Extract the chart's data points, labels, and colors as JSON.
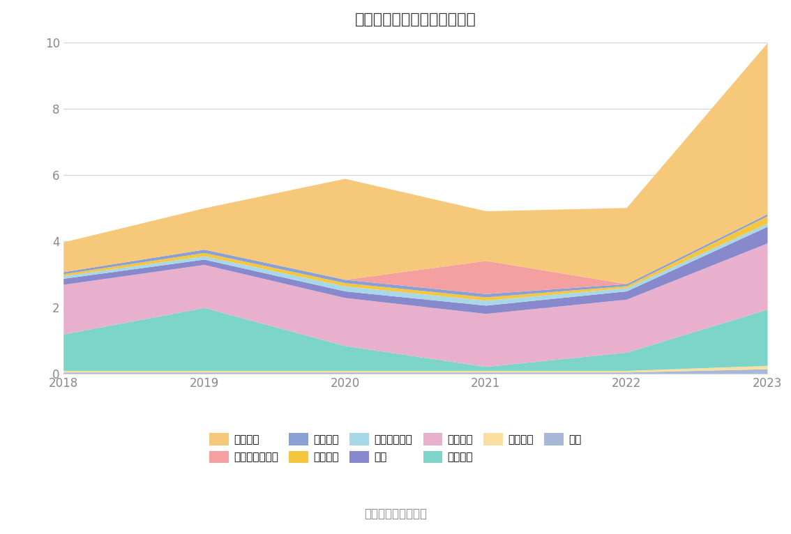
{
  "years": [
    2018,
    2019,
    2020,
    2021,
    2022,
    2023
  ],
  "series": {
    "其它": [
      0.05,
      0.05,
      0.05,
      0.05,
      0.05,
      0.15
    ],
    "无形资产": [
      0.05,
      0.05,
      0.05,
      0.05,
      0.05,
      0.1
    ],
    "在建工程": [
      1.1,
      1.9,
      0.75,
      0.12,
      0.55,
      1.7
    ],
    "固定资产": [
      1.5,
      1.3,
      1.45,
      1.6,
      1.6,
      2.0
    ],
    "存货": [
      0.18,
      0.16,
      0.2,
      0.25,
      0.25,
      0.5
    ],
    "应收款项融资": [
      0.08,
      0.1,
      0.15,
      0.15,
      0.1,
      0.1
    ],
    "应收账款": [
      0.06,
      0.1,
      0.1,
      0.1,
      0.06,
      0.22
    ],
    "应收票据": [
      0.06,
      0.1,
      0.1,
      0.1,
      0.06,
      0.06
    ],
    "交易性金融资产": [
      0.0,
      0.0,
      0.0,
      1.0,
      0.0,
      0.0
    ],
    "货币资金": [
      0.9,
      1.25,
      3.05,
      1.5,
      2.3,
      5.17
    ]
  },
  "colors": {
    "其它": "#A8B8D8",
    "无形资产": "#FAE0A0",
    "在建工程": "#7DD4C8",
    "固定资产": "#E8B0CC",
    "存货": "#8888CC",
    "应收款项融资": "#A8D8E8",
    "应收账款": "#F5C640",
    "应收票据": "#8A9FD4",
    "交易性金融资产": "#F4A0A0",
    "货币资金": "#F5C87A"
  },
  "stack_order": [
    "其它",
    "无形资产",
    "在建工程",
    "固定资产",
    "存货",
    "应收款项融资",
    "应收账款",
    "应收票据",
    "交易性金融资产",
    "货币资金"
  ],
  "legend_order": [
    "货币资金",
    "交易性金融资产",
    "应收票据",
    "应收账款",
    "应收款项融资",
    "存货",
    "固定资产",
    "在建工程",
    "无形资产",
    "其它"
  ],
  "title": "历年主要资产堆积图（亿元）",
  "ylim": [
    0,
    10
  ],
  "yticks": [
    0,
    2,
    4,
    6,
    8,
    10
  ],
  "source_text": "数据来源：恒生聚源",
  "background_color": "#FFFFFF",
  "grid_color": "#C8D4E0"
}
